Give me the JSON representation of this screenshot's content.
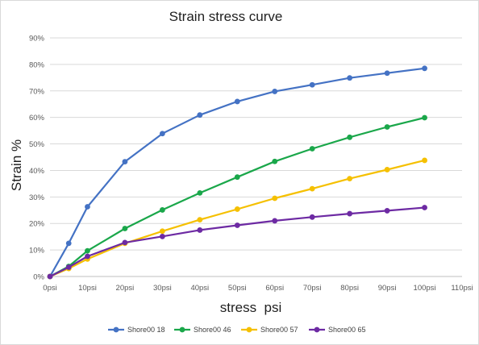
{
  "chart_data": {
    "type": "line",
    "title": "Strain stress curve",
    "xlabel": "stress  psi",
    "ylabel": "Strain %",
    "xlim": [
      0,
      110
    ],
    "ylim": [
      0,
      90
    ],
    "x_ticks": [
      0,
      10,
      20,
      30,
      40,
      50,
      60,
      70,
      80,
      90,
      100,
      110
    ],
    "x_tick_labels": [
      "0psi",
      "10psi",
      "20psi",
      "30psi",
      "40psi",
      "50psi",
      "60psi",
      "70psi",
      "80psi",
      "90psi",
      "100psi",
      "110psi"
    ],
    "y_ticks": [
      0,
      10,
      20,
      30,
      40,
      50,
      60,
      70,
      80,
      90
    ],
    "y_tick_labels": [
      "0%",
      "10%",
      "20%",
      "30%",
      "40%",
      "50%",
      "60%",
      "70%",
      "80%",
      "90%"
    ],
    "grid": "horizontal",
    "legend_position": "bottom",
    "series": [
      {
        "name": "Shore00 18",
        "color": "#4472c4",
        "x": [
          0,
          5,
          10,
          20,
          30,
          40,
          50,
          60,
          70,
          80,
          90,
          100
        ],
        "y": [
          0,
          12.5,
          26.3,
          43.3,
          53.9,
          60.9,
          66.0,
          69.8,
          72.3,
          74.9,
          76.7,
          78.5
        ]
      },
      {
        "name": "Shore00 46",
        "color": "#1aa74a",
        "x": [
          0,
          5,
          10,
          20,
          30,
          40,
          50,
          60,
          70,
          80,
          90,
          100
        ],
        "y": [
          0,
          3.8,
          9.7,
          18.1,
          25.1,
          31.5,
          37.5,
          43.4,
          48.2,
          52.5,
          56.4,
          59.9
        ]
      },
      {
        "name": "Shore00 57",
        "color": "#f5c000",
        "x": [
          0,
          5,
          10,
          20,
          30,
          40,
          50,
          60,
          70,
          80,
          90,
          100
        ],
        "y": [
          0,
          3.0,
          6.6,
          12.5,
          17.1,
          21.4,
          25.4,
          29.5,
          33.1,
          36.9,
          40.3,
          43.8
        ]
      },
      {
        "name": "Shore00 65",
        "color": "#6d2aa3",
        "x": [
          0,
          5,
          10,
          20,
          30,
          40,
          50,
          60,
          70,
          80,
          90,
          100
        ],
        "y": [
          0,
          3.5,
          7.6,
          12.8,
          15.1,
          17.5,
          19.3,
          21.0,
          22.4,
          23.7,
          24.8,
          26.0
        ]
      }
    ]
  }
}
